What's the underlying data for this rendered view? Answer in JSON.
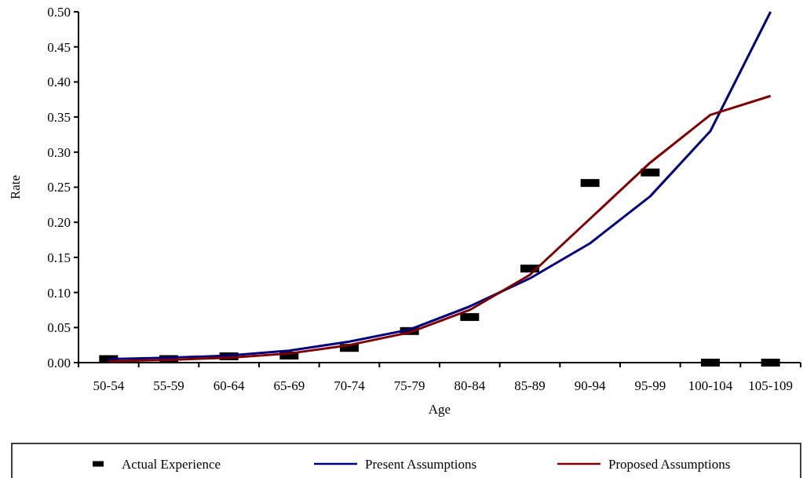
{
  "chart_data": {
    "type": "line",
    "xlabel": "Age",
    "ylabel": "Rate",
    "categories": [
      "50-54",
      "55-59",
      "60-64",
      "65-69",
      "70-74",
      "75-79",
      "80-84",
      "85-89",
      "90-94",
      "95-99",
      "100-104",
      "105-109"
    ],
    "ylim": [
      0,
      0.5
    ],
    "yticks": [
      {
        "value": 0,
        "label": "0.00"
      },
      {
        "value": 0.05,
        "label": "0.05"
      },
      {
        "value": 0.1,
        "label": "0.10"
      },
      {
        "value": 0.15,
        "label": "0.15"
      },
      {
        "value": 0.2,
        "label": "0.20"
      },
      {
        "value": 0.25,
        "label": "0.25"
      },
      {
        "value": 0.3,
        "label": "0.30"
      },
      {
        "value": 0.35,
        "label": "0.35"
      },
      {
        "value": 0.4,
        "label": "0.40"
      },
      {
        "value": 0.45,
        "label": "0.45"
      },
      {
        "value": 0.5,
        "label": "0.50"
      }
    ],
    "legend": "bottom",
    "series": [
      {
        "name": "Actual Experience",
        "type": "scatter",
        "color": "#000000",
        "values": [
          0.005,
          0.005,
          0.009,
          0.01,
          0.021,
          0.045,
          0.065,
          0.134,
          0.256,
          0.271,
          0,
          0
        ]
      },
      {
        "name": "Present Assumptions",
        "color": "#000080",
        "values": [
          0.005,
          0.007,
          0.01,
          0.017,
          0.03,
          0.047,
          0.08,
          0.12,
          0.17,
          0.237,
          0.33,
          0.5
        ]
      },
      {
        "name": "Proposed Assumptions",
        "color": "#800000",
        "values": [
          0.002,
          0.004,
          0.007,
          0.013,
          0.025,
          0.043,
          0.075,
          0.125,
          0.205,
          0.285,
          0.353,
          0.38
        ]
      }
    ]
  }
}
